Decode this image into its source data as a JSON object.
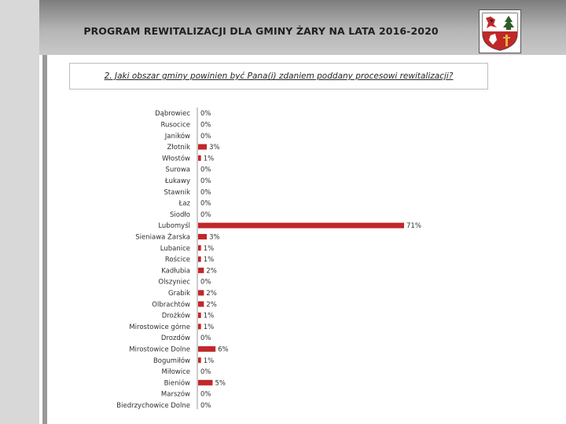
{
  "header": {
    "title": "PROGRAM REWITALIZACJI DLA GMINY ŻARY NA LATA 2016-2020"
  },
  "question": {
    "text": "2. Jaki obszar gminy powinien być Pana(i) zdaniem poddany procesowi rewitalizacji?"
  },
  "crest": {
    "icon": "coat-of-arms-icon"
  },
  "colors": {
    "bar": "#c0282a",
    "axis": "#9a9a9a",
    "band": "#b0b0b0"
  },
  "chart_data": {
    "type": "bar",
    "orientation": "horizontal",
    "categories": [
      "Dąbrowiec",
      "Rusocice",
      "Janików",
      "Złotnik",
      "Włostów",
      "Surowa",
      "Łukawy",
      "Stawnik",
      "Łaz",
      "Siodło",
      "Lubomyśl",
      "Sieniawa Żarska",
      "Lubanice",
      "Rościce",
      "Kadłubia",
      "Olszyniec",
      "Grabik",
      "Olbrachtów",
      "Drożków",
      "Mirostowice górne",
      "Drozdów",
      "Mirostowice Dolne",
      "Bogumiłów",
      "Miłowice",
      "Bieniów",
      "Marszów",
      "Biedrzychowice Dolne"
    ],
    "values": [
      0,
      0,
      0,
      3,
      1,
      0,
      0,
      0,
      0,
      0,
      71,
      3,
      1,
      1,
      2,
      0,
      2,
      2,
      1,
      1,
      0,
      6,
      1,
      0,
      5,
      0,
      0
    ],
    "labels": [
      "0%",
      "0%",
      "0%",
      "3%",
      "1%",
      "0%",
      "0%",
      "0%",
      "0%",
      "0%",
      "71%",
      "3%",
      "1%",
      "1%",
      "2%",
      "0%",
      "2%",
      "2%",
      "1%",
      "1%",
      "0%",
      "6%",
      "1%",
      "0%",
      "5%",
      "0%",
      "0%"
    ],
    "unit": "%",
    "title": "",
    "xlabel": "",
    "ylabel": "",
    "xlim": [
      0,
      71
    ],
    "grid": false,
    "legend": "none"
  }
}
